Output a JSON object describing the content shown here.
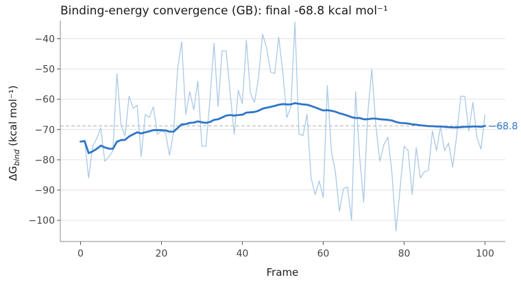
{
  "chart_data": {
    "type": "line",
    "title": "Binding-energy convergence (GB): final -68.8 kcal mol⁻¹",
    "xlabel": "Frame",
    "ylabel_main": "ΔG",
    "ylabel_sub": "bind",
    "ylabel_rest": " (kcal mol⁻¹)",
    "xlim": [
      -5,
      105
    ],
    "ylim": [
      -107,
      -34
    ],
    "xticks": [
      0,
      20,
      40,
      60,
      80,
      100
    ],
    "yticks": [
      -40,
      -50,
      -60,
      -70,
      -80,
      -90,
      -100
    ],
    "grid": "horizontal",
    "reference_line": {
      "y": -68.8,
      "style": "dashed"
    },
    "end_label": "−68.8",
    "colors": {
      "raw": "#a9c8e6",
      "running": "#2e75c7",
      "reference": "#bdbdbd",
      "end_label": "#2e75c7"
    },
    "x": [
      0,
      1,
      2,
      3,
      4,
      5,
      6,
      7,
      8,
      9,
      10,
      11,
      12,
      13,
      14,
      15,
      16,
      17,
      18,
      19,
      20,
      21,
      22,
      23,
      24,
      25,
      26,
      27,
      28,
      29,
      30,
      31,
      32,
      33,
      34,
      35,
      36,
      37,
      38,
      39,
      40,
      41,
      42,
      43,
      44,
      45,
      46,
      47,
      48,
      49,
      50,
      51,
      52,
      53,
      54,
      55,
      56,
      57,
      58,
      59,
      60,
      61,
      62,
      63,
      64,
      65,
      66,
      67,
      68,
      69,
      70,
      71,
      72,
      73,
      74,
      75,
      76,
      77,
      78,
      79,
      80,
      81,
      82,
      83,
      84,
      85,
      86,
      87,
      88,
      89,
      90,
      91,
      92,
      93,
      94,
      95,
      96,
      97,
      98,
      99,
      100
    ],
    "series": [
      {
        "style": "raw",
        "values": [
          -74.0,
          -73.5,
          -86.0,
          -75.5,
          -73.0,
          -69.5,
          -80.5,
          -79.0,
          -77.0,
          -51.5,
          -68.5,
          -72.0,
          -59.0,
          -63.0,
          -62.0,
          -79.0,
          -65.0,
          -66.0,
          -62.5,
          -71.5,
          -70.5,
          -71.0,
          -78.5,
          -71.0,
          -50.0,
          -41.0,
          -65.0,
          -57.5,
          -63.5,
          -54.0,
          -75.5,
          -75.5,
          -60.0,
          -41.5,
          -62.5,
          -44.0,
          -44.0,
          -58.0,
          -71.5,
          -57.0,
          -61.5,
          -40.5,
          -58.0,
          -61.0,
          -53.0,
          -38.5,
          -43.0,
          -51.0,
          -51.5,
          -39.5,
          -51.0,
          -66.0,
          -62.5,
          -34.5,
          -71.5,
          -72.0,
          -65.0,
          -86.0,
          -91.5,
          -87.0,
          -92.5,
          -55.5,
          -77.0,
          -84.0,
          -97.0,
          -89.5,
          -89.0,
          -100.0,
          -57.5,
          -79.0,
          -94.0,
          -65.0,
          -50.0,
          -68.5,
          -80.5,
          -75.0,
          -72.5,
          -84.5,
          -103.5,
          -89.5,
          -75.5,
          -77.0,
          -91.5,
          -76.0,
          -86.0,
          -84.0,
          -83.5,
          -70.5,
          -77.0,
          -69.0,
          -77.0,
          -74.5,
          -82.5,
          -72.0,
          -59.0,
          -59.0,
          -70.5,
          -61.0,
          -72.5,
          -76.5,
          -65.0
        ]
      },
      {
        "style": "running",
        "values": [
          -74.0,
          -73.8,
          -77.8,
          -77.2,
          -76.4,
          -75.3,
          -75.9,
          -76.3,
          -76.4,
          -74.0,
          -73.5,
          -73.4,
          -72.3,
          -71.6,
          -70.9,
          -71.3,
          -70.9,
          -70.6,
          -70.2,
          -70.2,
          -70.2,
          -70.3,
          -70.7,
          -70.7,
          -69.5,
          -68.3,
          -68.2,
          -67.8,
          -67.7,
          -67.3,
          -67.6,
          -67.8,
          -67.5,
          -66.8,
          -66.6,
          -66.0,
          -65.4,
          -65.2,
          -65.4,
          -65.2,
          -65.1,
          -64.4,
          -64.3,
          -64.2,
          -63.8,
          -63.1,
          -62.8,
          -62.5,
          -62.2,
          -61.8,
          -61.6,
          -61.7,
          -61.7,
          -61.3,
          -61.5,
          -61.7,
          -61.8,
          -62.2,
          -62.7,
          -63.2,
          -63.7,
          -63.6,
          -63.8,
          -64.1,
          -64.6,
          -65.0,
          -65.4,
          -65.9,
          -66.2,
          -66.2,
          -66.6,
          -66.6,
          -66.4,
          -66.4,
          -66.6,
          -66.7,
          -66.8,
          -67.0,
          -67.5,
          -67.8,
          -67.9,
          -68.0,
          -68.3,
          -68.4,
          -68.6,
          -68.7,
          -68.9,
          -68.9,
          -69.0,
          -69.0,
          -69.1,
          -69.2,
          -69.3,
          -69.3,
          -69.2,
          -69.1,
          -69.1,
          -69.0,
          -69.0,
          -69.1,
          -68.8
        ]
      }
    ]
  }
}
